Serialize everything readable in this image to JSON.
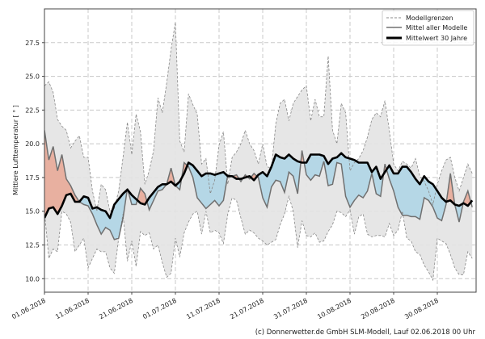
{
  "chart_data": {
    "type": "area",
    "title": "",
    "xlabel": "",
    "ylabel": "Mittlere Lufttemperatur [ ° ]",
    "start_date": "01.06.2018",
    "x_tick_labels": [
      "01.06.2018",
      "11.06.2018",
      "21.06.2018",
      "01.07.2018",
      "11.07.2018",
      "21.07.2018",
      "31.07.2018",
      "10.08.2018",
      "20.08.2018",
      "30.08.2018"
    ],
    "y_ticks": [
      10.0,
      12.5,
      15.0,
      17.5,
      20.0,
      22.5,
      25.0,
      27.5
    ],
    "y_tick_labels": [
      "10.0",
      "12.5",
      "15.0",
      "17.5",
      "20.0",
      "22.5",
      "25.0",
      "27.5"
    ],
    "ylim": [
      9,
      30
    ],
    "grid": true,
    "legend_position": "top-right",
    "series": [
      {
        "name": "Modellgrenzen",
        "role": "upper",
        "color": "#888888",
        "values": [
          24.3,
          24.6,
          23.8,
          21.8,
          21.3,
          21.0,
          19.7,
          20.2,
          20.6,
          19.0,
          19.0,
          16.5,
          15.0,
          17.0,
          16.6,
          15.0,
          15.2,
          16.5,
          19.0,
          21.6,
          19.2,
          22.2,
          20.9,
          17.0,
          18.0,
          19.5,
          23.4,
          22.3,
          24.5,
          27.0,
          29.0,
          20.2,
          19.4,
          23.7,
          22.9,
          22.2,
          18.5,
          18.9,
          16.3,
          17.3,
          19.9,
          20.9,
          17.0,
          19.0,
          19.4,
          20.0,
          21.0,
          20.0,
          19.5,
          18.5,
          20.0,
          18.3,
          18.2,
          21.5,
          23.0,
          23.3,
          21.7,
          23.0,
          23.5,
          24.0,
          24.3,
          21.7,
          23.3,
          22.0,
          22.0,
          26.5,
          21.0,
          20.0,
          23.0,
          22.3,
          18.0,
          18.6,
          18.9,
          19.5,
          20.5,
          21.8,
          22.3,
          22.0,
          23.2,
          21.0,
          18.5,
          18.0,
          18.7,
          18.5,
          18.2,
          18.9,
          17.6,
          17.2,
          16.5,
          15.5,
          17.0,
          18.0,
          18.8,
          19.0,
          17.5,
          16.5,
          17.5,
          18.5,
          17.8
        ]
      },
      {
        "name": "Modellgrenzen",
        "role": "lower",
        "color": "#888888",
        "values": [
          15.0,
          11.5,
          12.2,
          12.0,
          15.0,
          14.8,
          14.2,
          12.0,
          12.5,
          13.0,
          10.8,
          11.5,
          12.2,
          12.0,
          12.0,
          10.8,
          10.4,
          13.0,
          14.8,
          11.3,
          12.8,
          10.9,
          13.5,
          13.2,
          13.4,
          12.2,
          12.5,
          11.2,
          10.1,
          10.4,
          13.0,
          11.6,
          13.4,
          14.2,
          14.8,
          15.0,
          13.3,
          15.0,
          13.4,
          13.6,
          13.4,
          12.6,
          14.8,
          16.0,
          15.8,
          14.5,
          13.3,
          13.6,
          13.4,
          13.0,
          12.8,
          12.5,
          12.7,
          12.9,
          14.0,
          14.8,
          16.1,
          15.0,
          12.3,
          14.3,
          13.2,
          13.1,
          13.4,
          12.7,
          12.8,
          13.5,
          14.0,
          15.0,
          14.9,
          14.6,
          15.1,
          13.3,
          14.6,
          14.8,
          13.3,
          13.1,
          13.2,
          13.2,
          13.1,
          14.1,
          13.2,
          13.6,
          15.0,
          13.0,
          12.8,
          12.0,
          11.8,
          11.0,
          10.5,
          9.9,
          13.0,
          12.8,
          12.6,
          11.8,
          10.8,
          10.3,
          10.3,
          12.0,
          11.5
        ]
      },
      {
        "name": "Mittel aller Modelle",
        "role": "model_mean",
        "color": "#707070",
        "values": [
          21.0,
          18.8,
          19.8,
          18.0,
          19.2,
          17.4,
          16.9,
          16.2,
          15.7,
          15.5,
          15.4,
          14.8,
          14.0,
          13.3,
          13.8,
          13.6,
          12.9,
          13.0,
          14.5,
          16.7,
          15.5,
          15.5,
          16.7,
          16.3,
          15.1,
          15.8,
          16.5,
          16.6,
          17.0,
          18.2,
          16.9,
          16.6,
          18.6,
          18.3,
          17.5,
          16.0,
          15.6,
          15.2,
          15.5,
          15.8,
          15.4,
          15.8,
          17.7,
          17.6,
          17.7,
          17.2,
          17.7,
          17.4,
          17.8,
          17.5,
          16.0,
          15.3,
          16.8,
          17.3,
          17.2,
          16.4,
          17.9,
          17.6,
          16.3,
          19.5,
          17.7,
          17.3,
          17.7,
          17.6,
          18.7,
          16.9,
          17.0,
          18.6,
          18.5,
          16.1,
          15.3,
          15.8,
          16.2,
          16.0,
          16.5,
          17.8,
          16.3,
          16.1,
          18.5,
          17.4,
          16.5,
          15.3,
          14.7,
          14.7,
          14.6,
          14.6,
          14.4,
          16.0,
          15.8,
          15.3,
          14.5,
          14.3,
          15.5,
          17.8,
          15.5,
          14.2,
          15.7,
          16.5,
          15.3
        ]
      },
      {
        "name": "Mittelwert 30 Jahre",
        "role": "climate_mean",
        "color": "#000000",
        "values": [
          14.5,
          15.2,
          15.3,
          14.8,
          15.4,
          16.2,
          16.3,
          15.7,
          15.7,
          16.1,
          16.0,
          15.2,
          15.3,
          15.1,
          15.0,
          14.5,
          15.5,
          15.9,
          16.3,
          16.6,
          16.2,
          15.9,
          15.6,
          15.5,
          16.0,
          16.4,
          16.8,
          17.0,
          17.0,
          17.2,
          16.9,
          17.2,
          17.8,
          18.6,
          18.4,
          18.0,
          17.6,
          17.8,
          17.8,
          17.7,
          17.8,
          17.9,
          17.6,
          17.6,
          17.4,
          17.4,
          17.5,
          17.6,
          17.3,
          17.7,
          17.9,
          17.6,
          18.3,
          19.2,
          19.0,
          18.9,
          19.2,
          18.9,
          18.7,
          18.6,
          18.6,
          19.2,
          19.2,
          19.2,
          19.1,
          18.5,
          18.9,
          19.0,
          19.3,
          19.0,
          18.9,
          18.8,
          18.6,
          18.6,
          18.6,
          17.9,
          18.3,
          17.4,
          17.9,
          18.4,
          17.8,
          17.8,
          18.3,
          18.3,
          17.9,
          17.4,
          17.0,
          17.6,
          17.2,
          17.0,
          16.5,
          16.0,
          15.7,
          15.8,
          15.5,
          15.4,
          15.6,
          15.4,
          15.8
        ]
      }
    ],
    "colors": {
      "band": "#e3e3e3",
      "above": "#e8b0a0",
      "below": "#b5d7e6"
    }
  },
  "legend": {
    "items": [
      "Modellgrenzen",
      "Mittel aller Modelle",
      "Mittelwert 30 Jahre"
    ]
  },
  "footer": "(c) Donnerwetter.de GmbH SLM-Modell, Lauf 02.06.2018 00 Uhr"
}
